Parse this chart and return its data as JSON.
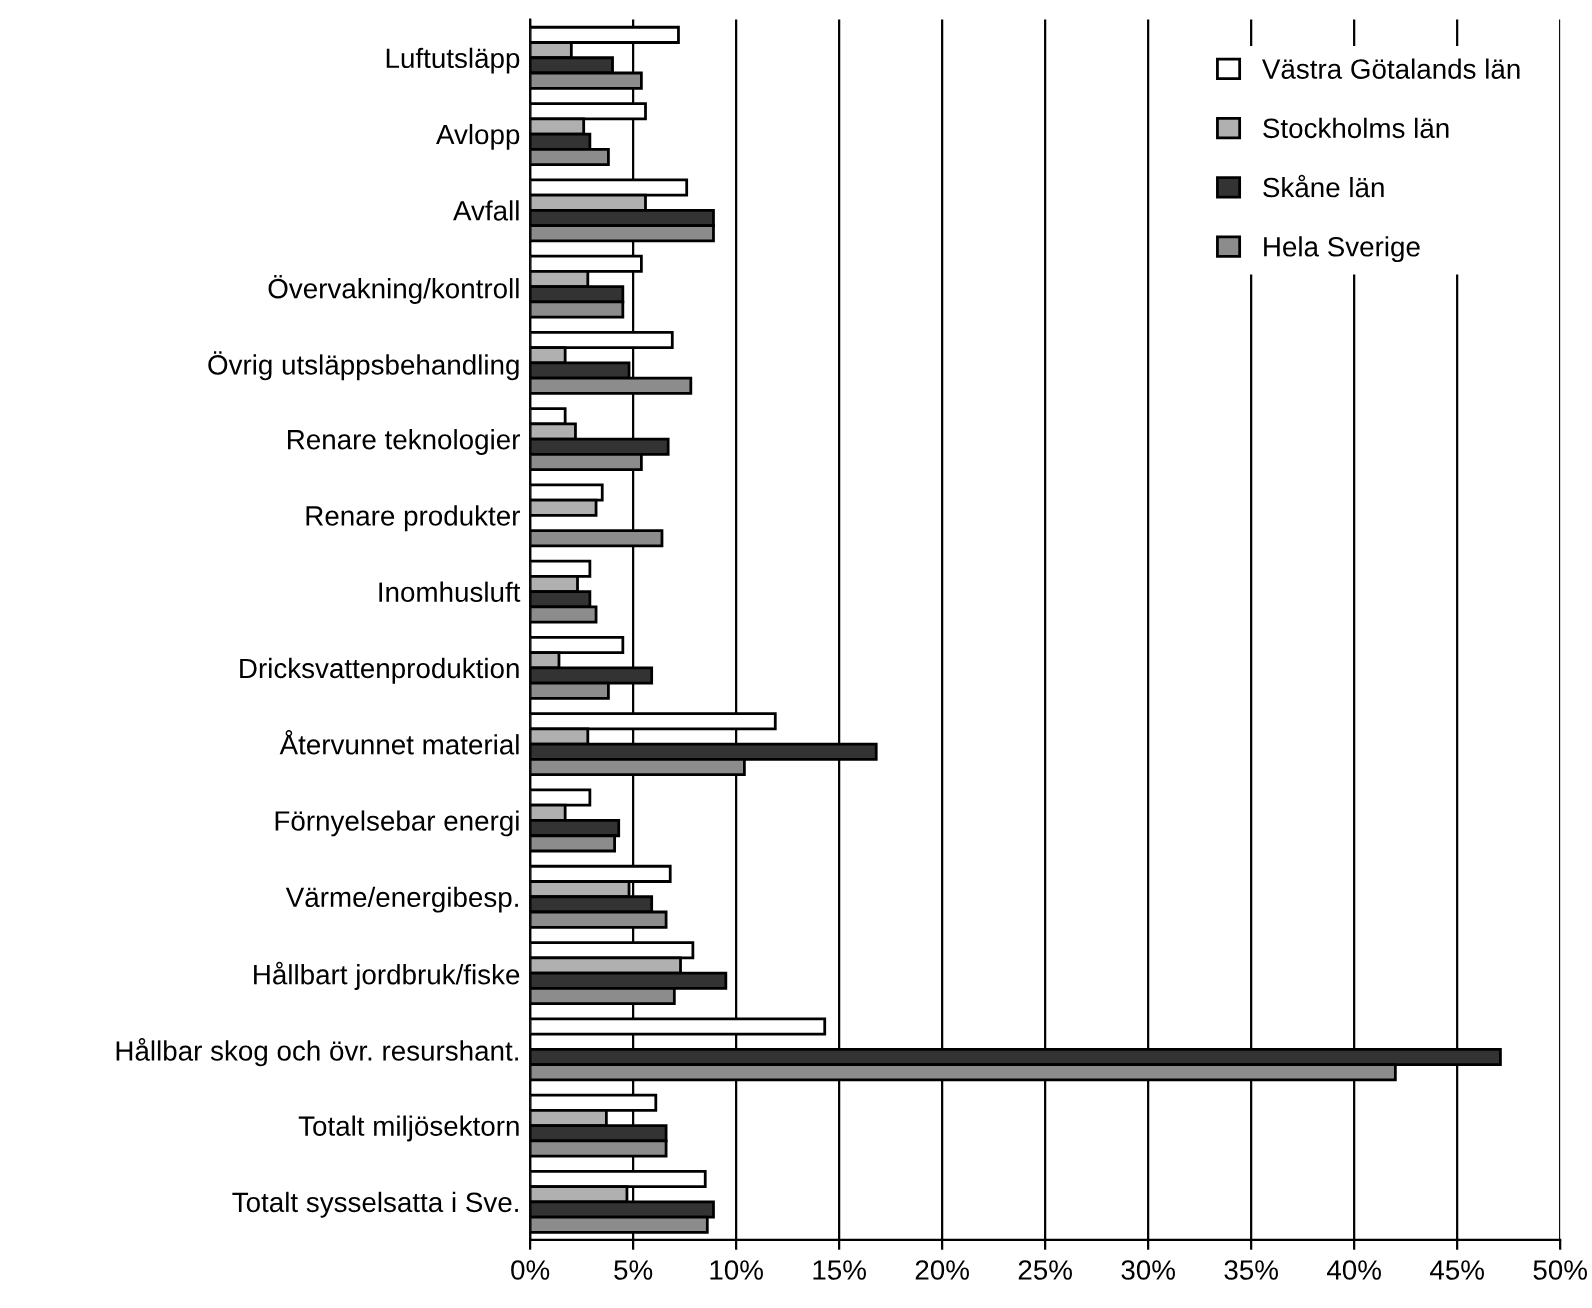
{
  "chart_data": {
    "type": "bar",
    "orientation": "horizontal",
    "categories": [
      "Luftutsläpp",
      "Avlopp",
      "Avfall",
      "Övervakning/kontroll",
      "Övrig utsläppsbehandling",
      "Renare teknologier",
      "Renare produkter",
      "Inomhusluft",
      "Dricksvattenproduktion",
      "Återvunnet material",
      "Förnyelsebar energi",
      "Värme/energibesp.",
      "Hållbart jordbruk/fiske",
      "Hållbar skog och övr. resurshant.",
      "Totalt miljösektorn",
      "Totalt sysselsatta i Sve."
    ],
    "series": [
      {
        "name": "Västra Götalands län",
        "color": "#ffffff",
        "values": [
          7.2,
          5.6,
          7.6,
          5.4,
          6.9,
          1.7,
          3.5,
          2.9,
          4.5,
          11.9,
          2.9,
          6.8,
          7.9,
          14.3,
          6.1,
          8.5
        ]
      },
      {
        "name": "Stockholms län",
        "color": "#b0b0b0",
        "values": [
          2.0,
          2.6,
          5.6,
          2.8,
          1.7,
          2.2,
          3.2,
          2.3,
          1.4,
          2.8,
          1.7,
          4.8,
          7.3,
          null,
          3.7,
          4.7
        ]
      },
      {
        "name": "Skåne län",
        "color": "#333333",
        "values": [
          4.0,
          2.9,
          8.9,
          4.5,
          4.8,
          6.7,
          null,
          2.9,
          5.9,
          16.8,
          4.3,
          5.9,
          9.5,
          47.1,
          6.6,
          8.9
        ]
      },
      {
        "name": "Hela Sverige",
        "color": "#8c8c8c",
        "values": [
          5.4,
          3.8,
          8.9,
          4.5,
          7.8,
          5.4,
          6.4,
          3.2,
          3.8,
          10.4,
          4.1,
          6.6,
          7.0,
          42.0,
          6.6,
          8.6
        ]
      }
    ],
    "xlim": [
      0,
      50
    ],
    "xticks": [
      {
        "value": 0,
        "label": "0%"
      },
      {
        "value": 5,
        "label": "5%"
      },
      {
        "value": 10,
        "label": "10%"
      },
      {
        "value": 15,
        "label": "15%"
      },
      {
        "value": 20,
        "label": "20%"
      },
      {
        "value": 25,
        "label": "25%"
      },
      {
        "value": 30,
        "label": "30%"
      },
      {
        "value": 35,
        "label": "35%"
      },
      {
        "value": 40,
        "label": "40%"
      },
      {
        "value": 45,
        "label": "45%"
      },
      {
        "value": 50,
        "label": "50%"
      }
    ],
    "grid": "x",
    "legend": "top right"
  }
}
